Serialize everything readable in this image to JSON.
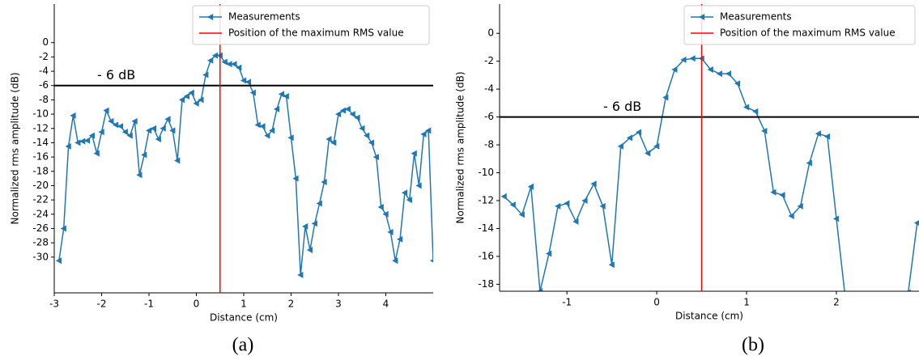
{
  "chart_data": [
    {
      "type": "line",
      "caption": "(a)",
      "xlabel": "Distance (cm)",
      "ylabel": "Normalized rms amplitude (dB)",
      "x": [
        -2.9,
        -2.8,
        -2.7,
        -2.6,
        -2.5,
        -2.4,
        -2.3,
        -2.2,
        -2.1,
        -2.0,
        -1.9,
        -1.8,
        -1.7,
        -1.6,
        -1.5,
        -1.4,
        -1.3,
        -1.2,
        -1.1,
        -1.0,
        -0.9,
        -0.8,
        -0.7,
        -0.6,
        -0.5,
        -0.4,
        -0.3,
        -0.2,
        -0.1,
        0.0,
        0.1,
        0.2,
        0.3,
        0.4,
        0.5,
        0.6,
        0.7,
        0.8,
        0.9,
        1.0,
        1.1,
        1.2,
        1.3,
        1.4,
        1.5,
        1.6,
        1.7,
        1.8,
        1.9,
        2.0,
        2.1,
        2.2,
        2.3,
        2.4,
        2.5,
        2.6,
        2.7,
        2.8,
        2.9,
        3.0,
        3.1,
        3.2,
        3.3,
        3.4,
        3.5,
        3.6,
        3.7,
        3.8,
        3.9,
        4.0,
        4.1,
        4.2,
        4.3,
        4.4,
        4.5,
        4.6,
        4.7,
        4.8,
        4.9,
        5.0
      ],
      "series": [
        {
          "name": "Measurements",
          "color": "#1f77b4",
          "values": [
            -30.5,
            -26,
            -14.5,
            -10.2,
            -14,
            -13.8,
            -13.7,
            -13,
            -15.5,
            -12.5,
            -9.5,
            -11,
            -11.5,
            -11.7,
            -12.5,
            -13,
            -11,
            -18.5,
            -15.7,
            -12.3,
            -12,
            -13.5,
            -12,
            -10.7,
            -12.3,
            -16.5,
            -8,
            -7.5,
            -7,
            -8.5,
            -8,
            -4.5,
            -2.5,
            -1.8,
            -1.8,
            -2.7,
            -3,
            -3,
            -3.5,
            -5.3,
            -5.5,
            -7,
            -11.5,
            -11.7,
            -13,
            -12.3,
            -9.3,
            -7.2,
            -7.5,
            -13.3,
            -19,
            -32.5,
            -25.7,
            -29,
            -25.3,
            -22.5,
            -19.5,
            -13.5,
            -14,
            -10,
            -9.5,
            -9.3,
            -10,
            -10.5,
            -12,
            -13,
            -14,
            -16,
            -23,
            -24,
            -26.5,
            -30.5,
            -27.5,
            -21,
            -22,
            -15.5,
            -20,
            -12.8,
            -12.3,
            -30.5
          ]
        }
      ],
      "vline": {
        "x": 0.5,
        "name": "Position of the maximum RMS value",
        "color": "#ff0000"
      },
      "hline": {
        "y": -6,
        "label": "- 6 dB",
        "color": "#000000"
      },
      "xlim": [
        -3,
        5
      ],
      "ylim": [
        -35,
        5.4
      ],
      "xticks": [
        -3,
        -2,
        -1,
        0,
        1,
        2,
        3,
        4
      ],
      "yticks": [
        0,
        -2,
        -4,
        -6,
        -8,
        -10,
        -12,
        -14,
        -16,
        -18,
        -20,
        -22,
        -24,
        -26,
        -28,
        -30
      ],
      "legend": "upper right"
    },
    {
      "type": "line",
      "caption": "(b)",
      "xlabel": "Distance (cm)",
      "ylabel": "Normalized rms amplitude (dB)",
      "x": [
        -1.7,
        -1.6,
        -1.5,
        -1.4,
        -1.3,
        -1.2,
        -1.1,
        -1.0,
        -0.9,
        -0.8,
        -0.7,
        -0.6,
        -0.5,
        -0.4,
        -0.3,
        -0.2,
        -0.1,
        0.0,
        0.1,
        0.2,
        0.3,
        0.4,
        0.5,
        0.6,
        0.7,
        0.8,
        0.9,
        1.0,
        1.1,
        1.2,
        1.3,
        1.4,
        1.5,
        1.6,
        1.7,
        1.8,
        1.9,
        2.0,
        2.1,
        2.8,
        2.9
      ],
      "series": [
        {
          "name": "Measurements",
          "color": "#1f77b4",
          "values": [
            -11.7,
            -12.3,
            -13,
            -11,
            -18.5,
            -15.8,
            -12.4,
            -12.2,
            -13.5,
            -12,
            -10.8,
            -12.4,
            -16.6,
            -8.1,
            -7.5,
            -7.1,
            -8.6,
            -8.1,
            -4.6,
            -2.6,
            -1.9,
            -1.8,
            -1.8,
            -2.6,
            -2.9,
            -2.9,
            -3.6,
            -5.3,
            -5.6,
            -7,
            -11.4,
            -11.6,
            -13.1,
            -12.4,
            -9.3,
            -7.2,
            -7.4,
            -13.3,
            -19,
            -18.6,
            -13.6
          ]
        }
      ],
      "vline": {
        "x": 0.5,
        "name": "Position of the maximum RMS value",
        "color": "#ff0000"
      },
      "hline": {
        "y": -6,
        "label": "- 6 dB",
        "color": "#000000"
      },
      "xlim": [
        -1.75,
        2.92
      ],
      "ylim": [
        -18.5,
        2.1
      ],
      "xticks": [
        -1,
        0,
        1,
        2
      ],
      "yticks": [
        0,
        -2,
        -4,
        -6,
        -8,
        -10,
        -12,
        -14,
        -16,
        -18
      ],
      "legend": "upper right"
    }
  ]
}
